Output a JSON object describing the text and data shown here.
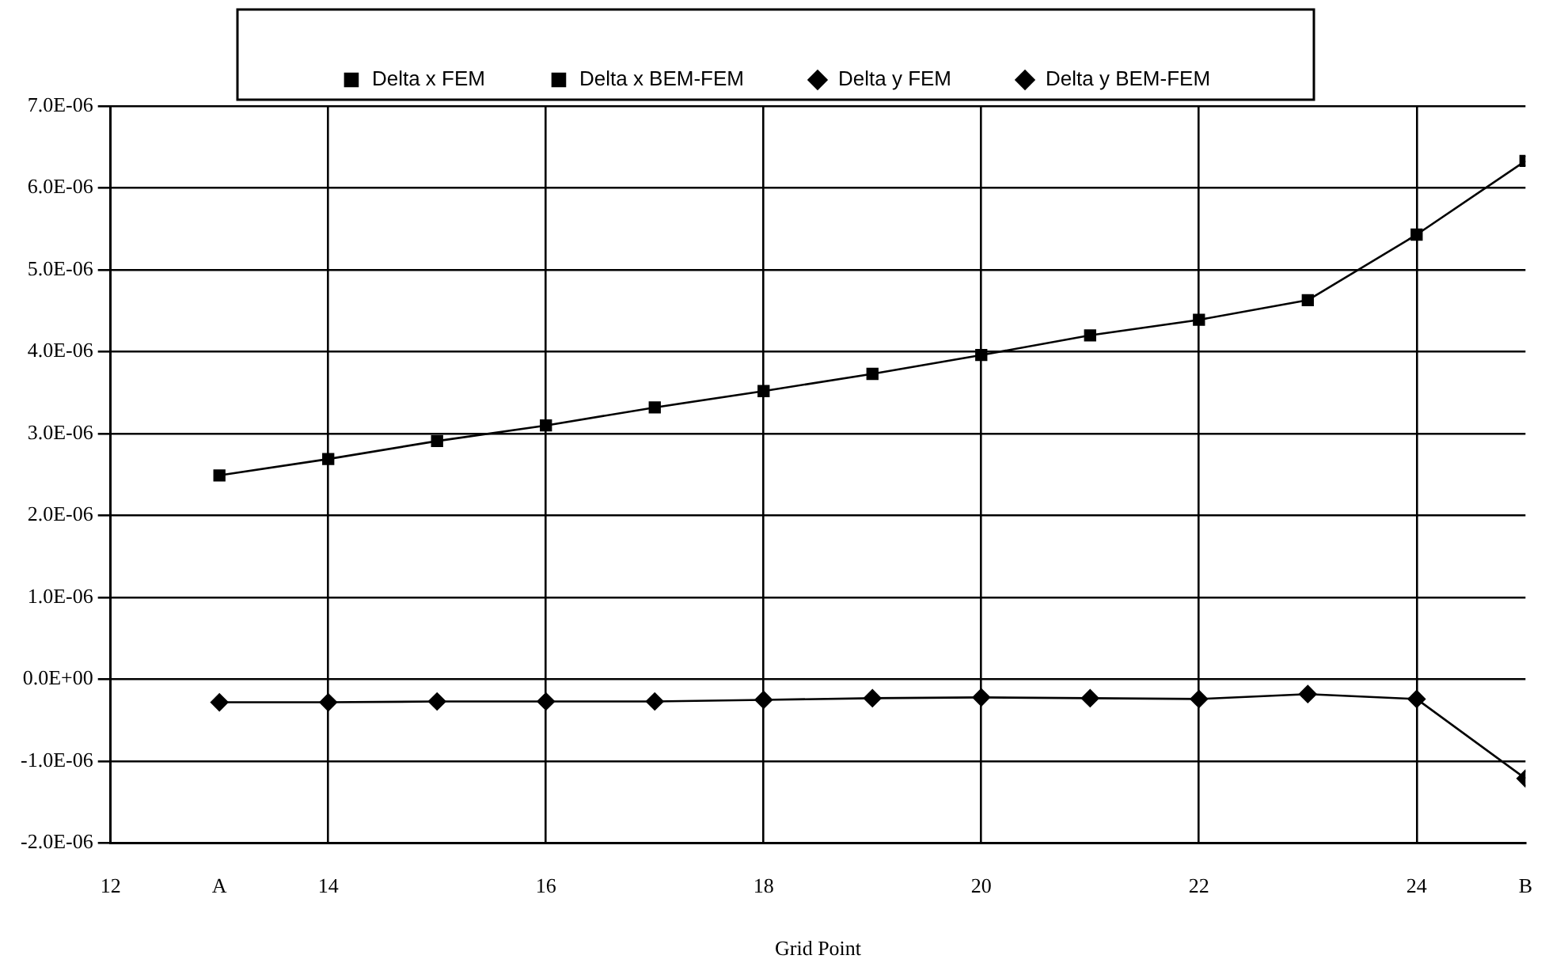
{
  "chart_data": {
    "type": "line",
    "xlabel": "Grid Point",
    "x": [
      13,
      14,
      15,
      16,
      17,
      18,
      19,
      20,
      21,
      22,
      23,
      24,
      25
    ],
    "series": [
      {
        "name": "Delta x FEM",
        "color": "#000000",
        "marker": "square",
        "values": [
          null,
          null,
          null,
          null,
          null,
          null,
          null,
          null,
          null,
          null,
          null,
          null,
          null
        ]
      },
      {
        "name": "Delta x BEM-FEM",
        "color": "#000000",
        "marker": "square",
        "values": [
          2.49e-06,
          2.69e-06,
          2.91e-06,
          3.1e-06,
          3.32e-06,
          3.52e-06,
          3.73e-06,
          3.96e-06,
          4.2e-06,
          4.39e-06,
          4.63e-06,
          5.43e-06,
          6.33e-06
        ]
      },
      {
        "name": "Delta y FEM",
        "color": "#000000",
        "marker": "diamond",
        "values": [
          null,
          null,
          null,
          null,
          null,
          null,
          null,
          null,
          null,
          null,
          null,
          null,
          null
        ]
      },
      {
        "name": "Delta y BEM-FEM",
        "color": "#000000",
        "marker": "diamond",
        "values": [
          -2.8e-07,
          -2.8e-07,
          -2.7e-07,
          -2.7e-07,
          -2.7e-07,
          -2.5e-07,
          -2.3e-07,
          -2.2e-07,
          -2.3e-07,
          -2.4e-07,
          -1.8e-07,
          -2.4e-07,
          -1.21e-06
        ]
      }
    ],
    "xlim": [
      12,
      25
    ],
    "xticks": [
      12,
      {
        "value": 13,
        "label": "A"
      },
      14,
      16,
      18,
      20,
      22,
      24,
      {
        "value": 25,
        "label": "B"
      }
    ],
    "ylim": [
      -2e-06,
      7e-06
    ],
    "yticks": [
      {
        "value": -2e-06,
        "label": "-2.0E-06"
      },
      {
        "value": -1e-06,
        "label": "-1.0E-06"
      },
      {
        "value": 0,
        "label": "0.0E+00"
      },
      {
        "value": 1e-06,
        "label": "1.0E-06"
      },
      {
        "value": 2e-06,
        "label": "2.0E-06"
      },
      {
        "value": 3e-06,
        "label": "3.0E-06"
      },
      {
        "value": 4e-06,
        "label": "4.0E-06"
      },
      {
        "value": 5e-06,
        "label": "5.0E-06"
      },
      {
        "value": 6e-06,
        "label": "6.0E-06"
      },
      {
        "value": 7e-06,
        "label": "7.0E-06"
      }
    ],
    "grid": true,
    "legend": "top",
    "line_style": "solid"
  }
}
